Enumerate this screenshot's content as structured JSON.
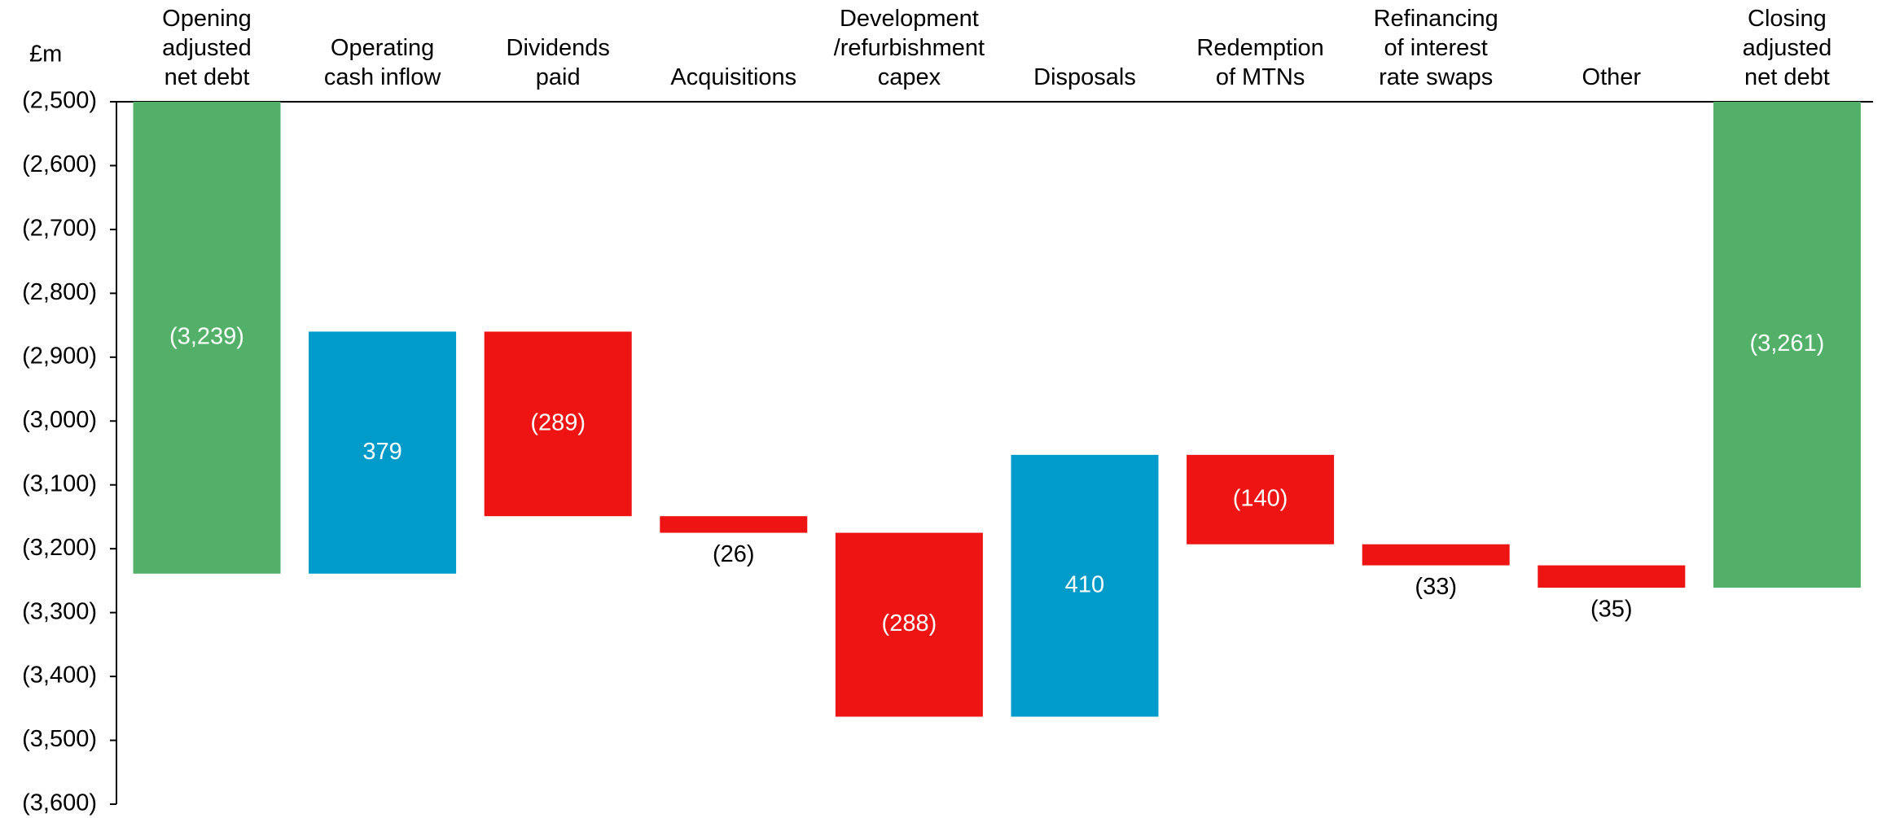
{
  "chart_data": {
    "type": "waterfall",
    "y_label": "£m",
    "categories": [
      "Opening\nadjusted\nnet debt",
      "Operating\ncash inflow",
      "Dividends\npaid",
      "Acquisitions",
      "Development\n/refurbishment\ncapex",
      "Disposals",
      "Redemption\nof MTNs",
      "Refinancing\nof interest\nrate swaps",
      "Other",
      "Closing\nadjusted\nnet debt"
    ],
    "values": [
      -3239,
      379,
      -289,
      -26,
      -288,
      410,
      -140,
      -33,
      -35,
      -3261
    ],
    "value_labels": [
      "(3,239)",
      "379",
      "(289)",
      "(26)",
      "(288)",
      "410",
      "(140)",
      "(33)",
      "(35)",
      "(3,261)"
    ],
    "bar_kinds": [
      "total",
      "change",
      "change",
      "change",
      "change",
      "change",
      "change",
      "change",
      "change",
      "total"
    ],
    "colors": [
      "#52b068",
      "#009bc9",
      "#ee1414",
      "#ee1414",
      "#ee1414",
      "#009bc9",
      "#ee1414",
      "#ee1414",
      "#ee1414",
      "#52b068"
    ],
    "ylim": [
      -3600,
      -2500
    ],
    "yticks": [
      {
        "value": -2500,
        "label": "(2,500)"
      },
      {
        "value": -2600,
        "label": "(2,600)"
      },
      {
        "value": -2700,
        "label": "(2,700)"
      },
      {
        "value": -2800,
        "label": "(2,800)"
      },
      {
        "value": -2900,
        "label": "(2,900)"
      },
      {
        "value": -3000,
        "label": "(3,000)"
      },
      {
        "value": -3100,
        "label": "(3,100)"
      },
      {
        "value": -3200,
        "label": "(3,200)"
      },
      {
        "value": -3300,
        "label": "(3,300)"
      },
      {
        "value": -3400,
        "label": "(3,400)"
      },
      {
        "value": -3500,
        "label": "(3,500)"
      },
      {
        "value": -3600,
        "label": "(3,600)"
      }
    ],
    "grid": false
  }
}
